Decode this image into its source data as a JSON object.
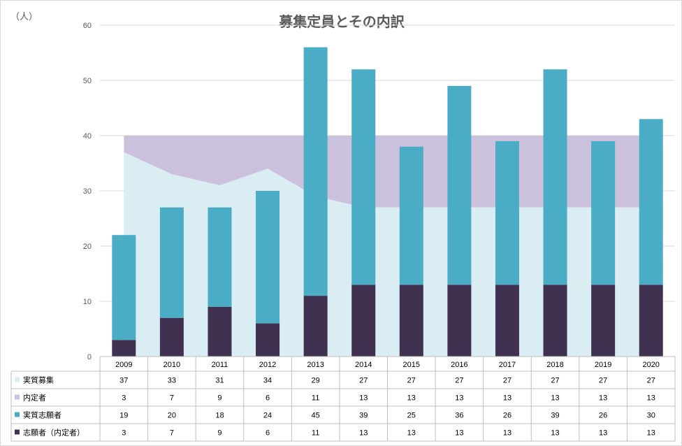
{
  "chart_data": {
    "type": "bar",
    "title": "募集定員とその内訳",
    "unit_label": "（人）",
    "categories": [
      "2009",
      "2010",
      "2011",
      "2012",
      "2013",
      "2014",
      "2015",
      "2016",
      "2017",
      "2018",
      "2019",
      "2020"
    ],
    "ylim": [
      0,
      60
    ],
    "yticks": [
      0,
      10,
      20,
      30,
      40,
      50,
      60
    ],
    "grid": true,
    "series": [
      {
        "name": "実質募集",
        "kind": "area",
        "color": "#daedf3",
        "values": [
          37,
          33,
          31,
          34,
          29,
          27,
          27,
          27,
          27,
          27,
          27,
          27
        ]
      },
      {
        "name": "内定者",
        "kind": "area",
        "color": "#ccc1dc",
        "values": [
          3,
          7,
          9,
          6,
          11,
          13,
          13,
          13,
          13,
          13,
          13,
          13
        ]
      },
      {
        "name": "実質志願者",
        "kind": "stacked-bar",
        "color": "#4bacc6",
        "values": [
          19,
          20,
          18,
          24,
          45,
          39,
          25,
          36,
          26,
          39,
          26,
          30
        ]
      },
      {
        "name": "志願者（内定者）",
        "kind": "stacked-bar",
        "color": "#403151",
        "values": [
          3,
          7,
          9,
          6,
          11,
          13,
          13,
          13,
          13,
          13,
          13,
          13
        ]
      }
    ]
  }
}
